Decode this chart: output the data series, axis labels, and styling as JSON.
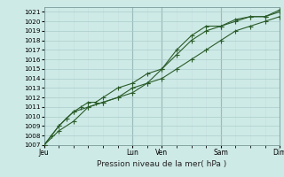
{
  "xlabel": "Pression niveau de la mer( hPa )",
  "background_color": "#ceeae6",
  "grid_major_color": "#aacccc",
  "grid_minor_color": "#c4dede",
  "line_color": "#2a5c2a",
  "marker_color": "#2a5c2a",
  "vline_color": "#7a9a9a",
  "ylim": [
    1007,
    1021.5
  ],
  "xlim": [
    0,
    8.0
  ],
  "yticks": [
    1007,
    1008,
    1009,
    1010,
    1011,
    1012,
    1013,
    1014,
    1015,
    1016,
    1017,
    1018,
    1019,
    1020,
    1021
  ],
  "day_labels": [
    "Jeu",
    "Lun",
    "Ven",
    "Sam",
    "Dim"
  ],
  "day_positions": [
    0,
    3.0,
    4.0,
    6.0,
    8.0
  ],
  "vline_positions": [
    0,
    3.0,
    4.0,
    6.0,
    8.0
  ],
  "series1": {
    "x": [
      0,
      0.25,
      0.5,
      0.75,
      1.0,
      1.25,
      1.5,
      1.75,
      2.0,
      2.5,
      3.0,
      3.5,
      4.0,
      4.5,
      5.0,
      5.5,
      6.0,
      6.5,
      7.0,
      7.5,
      8.0
    ],
    "y": [
      1007,
      1008,
      1009,
      1009.8,
      1010.5,
      1011,
      1011.5,
      1011.5,
      1012,
      1013,
      1013.5,
      1014.5,
      1015,
      1016.5,
      1018,
      1019,
      1019.5,
      1020,
      1020.5,
      1020.5,
      1021
    ]
  },
  "series2": {
    "x": [
      0,
      0.5,
      1.0,
      1.5,
      2.0,
      2.5,
      3.0,
      3.5,
      4.0,
      4.5,
      5.0,
      5.5,
      6.0,
      6.5,
      7.0,
      7.5,
      8.0
    ],
    "y": [
      1007,
      1009,
      1010.5,
      1011,
      1011.5,
      1012,
      1013,
      1013.5,
      1015,
      1017,
      1018.5,
      1019.5,
      1019.5,
      1020.2,
      1020.5,
      1020.5,
      1021.2
    ]
  },
  "series3": {
    "x": [
      0,
      0.5,
      1.0,
      1.5,
      2.0,
      2.5,
      3.0,
      3.5,
      4.0,
      4.5,
      5.0,
      5.5,
      6.0,
      6.5,
      7.0,
      7.5,
      8.0
    ],
    "y": [
      1007,
      1008.5,
      1009.5,
      1011,
      1011.5,
      1012,
      1012.5,
      1013.5,
      1014,
      1015,
      1016,
      1017,
      1018,
      1019,
      1019.5,
      1020,
      1020.5
    ]
  },
  "ytick_fontsize": 5.2,
  "xtick_fontsize": 5.5,
  "xlabel_fontsize": 6.5,
  "linewidth": 0.8,
  "markersize": 2.0
}
